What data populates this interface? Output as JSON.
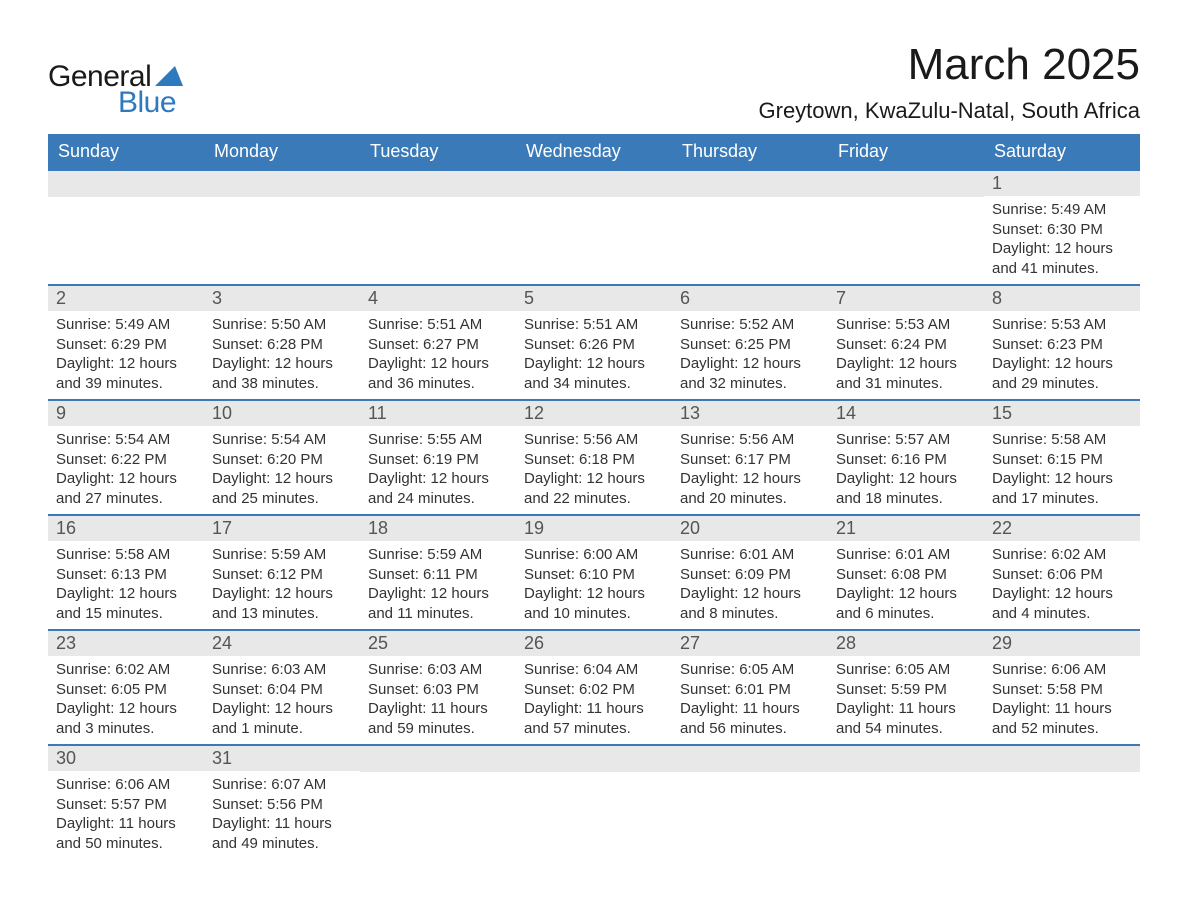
{
  "brand": {
    "word1": "General",
    "word2": "Blue",
    "logo_color": "#2f7abf"
  },
  "title": "March 2025",
  "location": "Greytown, KwaZulu-Natal, South Africa",
  "colors": {
    "header_bg": "#3a7ab8",
    "header_text": "#ffffff",
    "row_divider": "#3a7ab8",
    "daynum_bg": "#e8e8e8",
    "daynum_text": "#555555",
    "body_text": "#333333",
    "page_bg": "#ffffff"
  },
  "typography": {
    "title_fontsize": 44,
    "location_fontsize": 22,
    "dow_fontsize": 18,
    "daynum_fontsize": 18,
    "body_fontsize": 15
  },
  "days_of_week": [
    "Sunday",
    "Monday",
    "Tuesday",
    "Wednesday",
    "Thursday",
    "Friday",
    "Saturday"
  ],
  "leading_blanks": 6,
  "calendar_type": "sunrise-sunset-daylight",
  "days": [
    {
      "n": 1,
      "sunrise": "5:49 AM",
      "sunset": "6:30 PM",
      "daylight": "12 hours and 41 minutes."
    },
    {
      "n": 2,
      "sunrise": "5:49 AM",
      "sunset": "6:29 PM",
      "daylight": "12 hours and 39 minutes."
    },
    {
      "n": 3,
      "sunrise": "5:50 AM",
      "sunset": "6:28 PM",
      "daylight": "12 hours and 38 minutes."
    },
    {
      "n": 4,
      "sunrise": "5:51 AM",
      "sunset": "6:27 PM",
      "daylight": "12 hours and 36 minutes."
    },
    {
      "n": 5,
      "sunrise": "5:51 AM",
      "sunset": "6:26 PM",
      "daylight": "12 hours and 34 minutes."
    },
    {
      "n": 6,
      "sunrise": "5:52 AM",
      "sunset": "6:25 PM",
      "daylight": "12 hours and 32 minutes."
    },
    {
      "n": 7,
      "sunrise": "5:53 AM",
      "sunset": "6:24 PM",
      "daylight": "12 hours and 31 minutes."
    },
    {
      "n": 8,
      "sunrise": "5:53 AM",
      "sunset": "6:23 PM",
      "daylight": "12 hours and 29 minutes."
    },
    {
      "n": 9,
      "sunrise": "5:54 AM",
      "sunset": "6:22 PM",
      "daylight": "12 hours and 27 minutes."
    },
    {
      "n": 10,
      "sunrise": "5:54 AM",
      "sunset": "6:20 PM",
      "daylight": "12 hours and 25 minutes."
    },
    {
      "n": 11,
      "sunrise": "5:55 AM",
      "sunset": "6:19 PM",
      "daylight": "12 hours and 24 minutes."
    },
    {
      "n": 12,
      "sunrise": "5:56 AM",
      "sunset": "6:18 PM",
      "daylight": "12 hours and 22 minutes."
    },
    {
      "n": 13,
      "sunrise": "5:56 AM",
      "sunset": "6:17 PM",
      "daylight": "12 hours and 20 minutes."
    },
    {
      "n": 14,
      "sunrise": "5:57 AM",
      "sunset": "6:16 PM",
      "daylight": "12 hours and 18 minutes."
    },
    {
      "n": 15,
      "sunrise": "5:58 AM",
      "sunset": "6:15 PM",
      "daylight": "12 hours and 17 minutes."
    },
    {
      "n": 16,
      "sunrise": "5:58 AM",
      "sunset": "6:13 PM",
      "daylight": "12 hours and 15 minutes."
    },
    {
      "n": 17,
      "sunrise": "5:59 AM",
      "sunset": "6:12 PM",
      "daylight": "12 hours and 13 minutes."
    },
    {
      "n": 18,
      "sunrise": "5:59 AM",
      "sunset": "6:11 PM",
      "daylight": "12 hours and 11 minutes."
    },
    {
      "n": 19,
      "sunrise": "6:00 AM",
      "sunset": "6:10 PM",
      "daylight": "12 hours and 10 minutes."
    },
    {
      "n": 20,
      "sunrise": "6:01 AM",
      "sunset": "6:09 PM",
      "daylight": "12 hours and 8 minutes."
    },
    {
      "n": 21,
      "sunrise": "6:01 AM",
      "sunset": "6:08 PM",
      "daylight": "12 hours and 6 minutes."
    },
    {
      "n": 22,
      "sunrise": "6:02 AM",
      "sunset": "6:06 PM",
      "daylight": "12 hours and 4 minutes."
    },
    {
      "n": 23,
      "sunrise": "6:02 AM",
      "sunset": "6:05 PM",
      "daylight": "12 hours and 3 minutes."
    },
    {
      "n": 24,
      "sunrise": "6:03 AM",
      "sunset": "6:04 PM",
      "daylight": "12 hours and 1 minute."
    },
    {
      "n": 25,
      "sunrise": "6:03 AM",
      "sunset": "6:03 PM",
      "daylight": "11 hours and 59 minutes."
    },
    {
      "n": 26,
      "sunrise": "6:04 AM",
      "sunset": "6:02 PM",
      "daylight": "11 hours and 57 minutes."
    },
    {
      "n": 27,
      "sunrise": "6:05 AM",
      "sunset": "6:01 PM",
      "daylight": "11 hours and 56 minutes."
    },
    {
      "n": 28,
      "sunrise": "6:05 AM",
      "sunset": "5:59 PM",
      "daylight": "11 hours and 54 minutes."
    },
    {
      "n": 29,
      "sunrise": "6:06 AM",
      "sunset": "5:58 PM",
      "daylight": "11 hours and 52 minutes."
    },
    {
      "n": 30,
      "sunrise": "6:06 AM",
      "sunset": "5:57 PM",
      "daylight": "11 hours and 50 minutes."
    },
    {
      "n": 31,
      "sunrise": "6:07 AM",
      "sunset": "5:56 PM",
      "daylight": "11 hours and 49 minutes."
    }
  ],
  "labels": {
    "sunrise": "Sunrise:",
    "sunset": "Sunset:",
    "daylight": "Daylight:"
  }
}
